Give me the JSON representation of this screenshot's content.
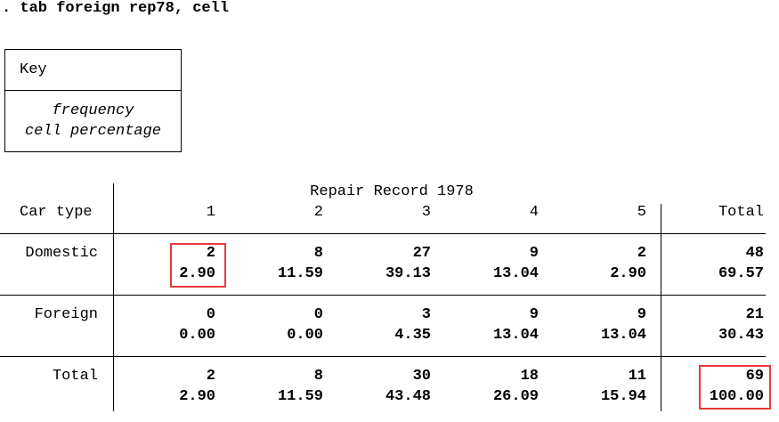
{
  "command": ". tab foreign rep78, cell",
  "key": {
    "title": "Key",
    "line1": "frequency",
    "line2": "cell percentage"
  },
  "table": {
    "row_var_label": "Car type",
    "col_var_label": "Repair Record 1978",
    "columns": [
      "1",
      "2",
      "3",
      "4",
      "5",
      "Total"
    ],
    "rows": [
      {
        "label": "Domestic",
        "freq": [
          "2",
          "8",
          "27",
          "9",
          "2",
          "48"
        ],
        "pct": [
          "2.90",
          "11.59",
          "39.13",
          "13.04",
          "2.90",
          "69.57"
        ]
      },
      {
        "label": "Foreign",
        "freq": [
          "0",
          "0",
          "3",
          "9",
          "9",
          "21"
        ],
        "pct": [
          "0.00",
          "0.00",
          "4.35",
          "13.04",
          "13.04",
          "30.43"
        ]
      },
      {
        "label": "Total",
        "freq": [
          "2",
          "8",
          "30",
          "18",
          "11",
          "69"
        ],
        "pct": [
          "2.90",
          "11.59",
          "43.48",
          "26.09",
          "15.94",
          "100.00"
        ]
      }
    ]
  },
  "highlight_color": "#e8383d"
}
